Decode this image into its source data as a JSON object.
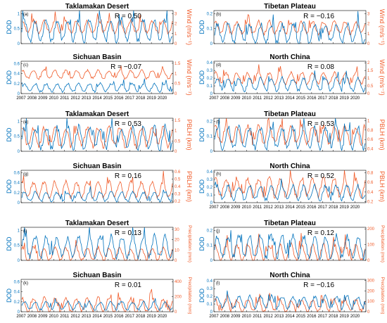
{
  "chart_data": [
    {
      "type": "line",
      "panel": "(a)",
      "title": "Taklamakan Desert",
      "r_label": "R = 0.50",
      "ylabel_left": "DOD",
      "ylabel_right": "Wind (m/s⁻¹)",
      "yticks_left": [
        "0",
        "0.5",
        "1"
      ],
      "yticks_right": [
        "0",
        "1",
        "2",
        "3"
      ],
      "ylim_left": [
        0,
        1.1
      ],
      "ylim_right": [
        0,
        3.3
      ],
      "xticks": [],
      "series": [
        {
          "name": "",
          "axis": "left",
          "color": "#0072BD",
          "base": 0.45,
          "amp": 0.35
        },
        {
          "name": "",
          "axis": "right",
          "color": "#F05A28",
          "base": 1.7,
          "amp": 0.6
        }
      ]
    },
    {
      "type": "line",
      "panel": "(b)",
      "title": "Tibetan Plateau",
      "r_label": "R = −0.16",
      "ylabel_left": "DOD",
      "ylabel_right": "Wind (m/s⁻¹)",
      "yticks_left": [
        "0",
        "0.1",
        "0.2"
      ],
      "yticks_right": [
        "0",
        "1",
        "2",
        "3"
      ],
      "ylim_left": [
        0,
        0.22
      ],
      "ylim_right": [
        0,
        3.3
      ],
      "xticks": [],
      "series": [
        {
          "name": "",
          "axis": "left",
          "color": "#0072BD",
          "base": 0.07,
          "amp": 0.06
        },
        {
          "name": "",
          "axis": "right",
          "color": "#F05A28",
          "base": 1.6,
          "amp": 0.6
        }
      ]
    },
    {
      "type": "line",
      "panel": "(c)",
      "title": "Sichuan Basin",
      "r_label": "R = −0.07",
      "ylabel_left": "DOD",
      "ylabel_right": "Wind (m/s⁻¹)",
      "yticks_left": [
        "0",
        "0.2",
        "0.4",
        "0.6"
      ],
      "yticks_right": [
        "0",
        "0.5",
        "1",
        "1.5"
      ],
      "ylim_left": [
        0,
        0.65
      ],
      "ylim_right": [
        0,
        1.6
      ],
      "xticks": [
        "2007",
        "2008",
        "2009",
        "2010",
        "2011",
        "2012",
        "2013",
        "2014",
        "2015",
        "2016",
        "2017",
        "2018",
        "2019",
        "2020"
      ],
      "series": [
        {
          "name": "",
          "axis": "left",
          "color": "#0072BD",
          "base": 0.12,
          "amp": 0.08
        },
        {
          "name": "",
          "axis": "right",
          "color": "#F05A28",
          "base": 0.95,
          "amp": 0.2
        }
      ]
    },
    {
      "type": "line",
      "panel": "(d)",
      "title": "North China",
      "r_label": "R = 0.08",
      "ylabel_left": "DOD",
      "ylabel_right": "Wind (m/s⁻¹)",
      "yticks_left": [
        "0",
        "0.1",
        "0.2",
        "0.3",
        "0.4"
      ],
      "yticks_right": [
        "0",
        "0.5",
        "1",
        "1.5",
        "2"
      ],
      "ylim_left": [
        0,
        0.42
      ],
      "ylim_right": [
        0,
        2.1
      ],
      "xticks": [
        "2007",
        "2008",
        "2009",
        "2010",
        "2011",
        "2012",
        "2013",
        "2014",
        "2015",
        "2016",
        "2017",
        "2018",
        "2019",
        "2020"
      ],
      "series": [
        {
          "name": "",
          "axis": "left",
          "color": "#0072BD",
          "base": 0.12,
          "amp": 0.08
        },
        {
          "name": "",
          "axis": "right",
          "color": "#F05A28",
          "base": 1.0,
          "amp": 0.35
        }
      ]
    },
    {
      "type": "line",
      "panel": "(e)",
      "title": "Taklamakan Desert",
      "r_label": "R = 0.53",
      "ylabel_left": "DOD",
      "ylabel_right": "PBLH (km)",
      "yticks_left": [
        "0",
        "0.5",
        "1"
      ],
      "yticks_right": [
        "0",
        "0.5",
        "1",
        "1.5"
      ],
      "ylim_left": [
        0,
        1.1
      ],
      "ylim_right": [
        0,
        1.6
      ],
      "xticks": [],
      "series": [
        {
          "name": "",
          "axis": "left",
          "color": "#0072BD",
          "base": 0.45,
          "amp": 0.35
        },
        {
          "name": "",
          "axis": "right",
          "color": "#F05A28",
          "base": 0.7,
          "amp": 0.45
        }
      ]
    },
    {
      "type": "line",
      "panel": "(f)",
      "title": "Tibetan Plateau",
      "r_label": "R = 0.53",
      "ylabel_left": "DOD",
      "ylabel_right": "PBLH (km)",
      "yticks_left": [
        "0",
        "0.1",
        "0.2"
      ],
      "yticks_right": [
        "0.4",
        "0.6",
        "0.8",
        "1"
      ],
      "ylim_left": [
        0,
        0.22
      ],
      "ylim_right": [
        0.35,
        1.05
      ],
      "xticks": [],
      "series": [
        {
          "name": "",
          "axis": "left",
          "color": "#0072BD",
          "base": 0.09,
          "amp": 0.07
        },
        {
          "name": "",
          "axis": "right",
          "color": "#F05A28",
          "base": 0.7,
          "amp": 0.18
        }
      ]
    },
    {
      "type": "line",
      "panel": "(g)",
      "title": "Sichuan Basin",
      "r_label": "R = 0.16",
      "ylabel_left": "DOD",
      "ylabel_right": "PBLH (km)",
      "yticks_left": [
        "0",
        "0.2",
        "0.4",
        "0.6"
      ],
      "yticks_right": [
        "0.2",
        "0.3",
        "0.4",
        "0.5",
        "0.6"
      ],
      "ylim_left": [
        0,
        0.65
      ],
      "ylim_right": [
        0.18,
        0.62
      ],
      "xticks": [],
      "series": [
        {
          "name": "",
          "axis": "left",
          "color": "#0072BD",
          "base": 0.12,
          "amp": 0.09
        },
        {
          "name": "",
          "axis": "right",
          "color": "#F05A28",
          "base": 0.36,
          "amp": 0.1
        }
      ]
    },
    {
      "type": "line",
      "panel": "(h)",
      "title": "North China",
      "r_label": "R = 0.52",
      "ylabel_left": "DOD",
      "ylabel_right": "PBLH (km)",
      "yticks_left": [
        "0",
        "0.1",
        "0.2",
        "0.3",
        "0.4"
      ],
      "yticks_right": [
        "0.2",
        "0.4",
        "0.6",
        "0.8"
      ],
      "ylim_left": [
        0,
        0.42
      ],
      "ylim_right": [
        0.18,
        0.85
      ],
      "xticks": [
        "2007",
        "2008",
        "2009",
        "2010",
        "2011",
        "2012",
        "2013",
        "2014",
        "2015",
        "2016",
        "2017",
        "2018",
        "2019",
        "2020"
      ],
      "series": [
        {
          "name": "",
          "axis": "left",
          "color": "#0072BD",
          "base": 0.13,
          "amp": 0.09
        },
        {
          "name": "",
          "axis": "right",
          "color": "#F05A28",
          "base": 0.5,
          "amp": 0.18
        }
      ]
    },
    {
      "type": "line",
      "panel": "(i)",
      "title": "Taklamakan Desert",
      "r_label": "R = 0.13",
      "ylabel_left": "DOD",
      "ylabel_right": "Precipitation (mm)",
      "yticks_left": [
        "0",
        "0.5",
        "1"
      ],
      "yticks_right": [
        "0",
        "10",
        "20",
        "30"
      ],
      "ylim_left": [
        0,
        1.1
      ],
      "ylim_right": [
        0,
        32
      ],
      "xticks": [],
      "series": [
        {
          "name": "",
          "axis": "left",
          "color": "#0072BD",
          "base": 0.45,
          "amp": 0.35
        },
        {
          "name": "",
          "axis": "right",
          "color": "#F05A28",
          "base": 6,
          "amp": 6
        }
      ]
    },
    {
      "type": "line",
      "panel": "(j)",
      "title": "Tibetan Plateau",
      "r_label": "R = 0.12",
      "ylabel_left": "DOD",
      "ylabel_right": "Precipitation (mm)",
      "yticks_left": [
        "0",
        "0.1",
        "0.2"
      ],
      "yticks_right": [
        "0",
        "100",
        "200"
      ],
      "ylim_left": [
        0,
        0.22
      ],
      "ylim_right": [
        0,
        210
      ],
      "xticks": [],
      "series": [
        {
          "name": "",
          "axis": "left",
          "color": "#0072BD",
          "base": 0.09,
          "amp": 0.07
        },
        {
          "name": "",
          "axis": "right",
          "color": "#F05A28",
          "base": 50,
          "amp": 50
        }
      ]
    },
    {
      "type": "line",
      "panel": "(k)",
      "title": "Sichuan Basin",
      "r_label": "R = 0.01",
      "ylabel_left": "DOD",
      "ylabel_right": "Precipitation (mm)",
      "yticks_left": [
        "0",
        "0.2",
        "0.4",
        "0.6"
      ],
      "yticks_right": [
        "0",
        "200",
        "400"
      ],
      "ylim_left": [
        0,
        0.65
      ],
      "ylim_right": [
        0,
        430
      ],
      "xticks": [
        "2007",
        "2008",
        "2009",
        "2010",
        "2011",
        "2012",
        "2013",
        "2014",
        "2015",
        "2016",
        "2017",
        "2018",
        "2019",
        "2020"
      ],
      "series": [
        {
          "name": "",
          "axis": "left",
          "color": "#0072BD",
          "base": 0.12,
          "amp": 0.08
        },
        {
          "name": "",
          "axis": "right",
          "color": "#F05A28",
          "base": 90,
          "amp": 90
        }
      ]
    },
    {
      "type": "line",
      "panel": "(l)",
      "title": "North China",
      "r_label": "R = −0.16",
      "ylabel_left": "DOD",
      "ylabel_right": "Precipitation (mm)",
      "yticks_left": [
        "0",
        "0.1",
        "0.2",
        "0.3",
        "0.4"
      ],
      "yticks_right": [
        "0",
        "100",
        "200",
        "300"
      ],
      "ylim_left": [
        0,
        0.42
      ],
      "ylim_right": [
        0,
        310
      ],
      "xticks": [
        "2007",
        "2008",
        "2009",
        "2010",
        "2011",
        "2012",
        "2013",
        "2014",
        "2015",
        "2016",
        "2017",
        "2018",
        "2019",
        "2020"
      ],
      "series": [
        {
          "name": "",
          "axis": "left",
          "color": "#0072BD",
          "base": 0.12,
          "amp": 0.08
        },
        {
          "name": "",
          "axis": "right",
          "color": "#F05A28",
          "base": 60,
          "amp": 55
        }
      ]
    }
  ]
}
